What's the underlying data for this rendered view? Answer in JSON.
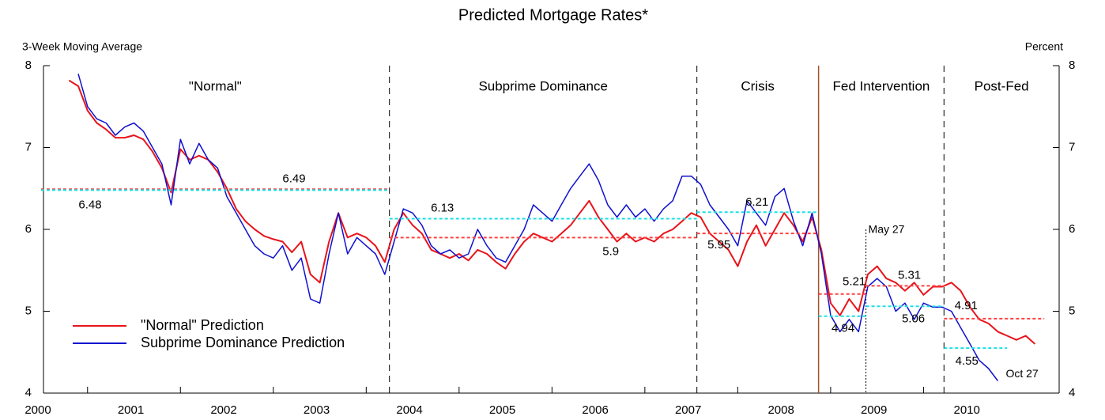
{
  "chart_data": {
    "type": "line",
    "title": "Predicted Mortgage Rates*",
    "ylabel": "3-Week Moving Average",
    "y2label": "Percent",
    "xlim": [
      2000,
      2010.96
    ],
    "ylim": [
      4,
      8
    ],
    "xticks": [
      2000,
      2001,
      2002,
      2003,
      2004,
      2005,
      2006,
      2007,
      2008,
      2009,
      2010
    ],
    "yticks": [
      4,
      5,
      6,
      7,
      8
    ],
    "y2ticks": [
      4,
      5,
      6,
      7,
      8
    ],
    "legend": "lower left",
    "x": [
      2000.3,
      2000.4,
      2000.5,
      2000.6,
      2000.7,
      2000.8,
      2000.9,
      2001.0,
      2001.1,
      2001.2,
      2001.3,
      2001.4,
      2001.5,
      2001.6,
      2001.7,
      2001.8,
      2001.9,
      2002.0,
      2002.1,
      2002.2,
      2002.3,
      2002.4,
      2002.5,
      2002.6,
      2002.7,
      2002.8,
      2002.9,
      2003.0,
      2003.1,
      2003.2,
      2003.3,
      2003.4,
      2003.5,
      2003.6,
      2003.7,
      2003.8,
      2003.9,
      2004.0,
      2004.1,
      2004.2,
      2004.3,
      2004.4,
      2004.5,
      2004.6,
      2004.7,
      2004.8,
      2004.9,
      2005.0,
      2005.1,
      2005.2,
      2005.3,
      2005.4,
      2005.5,
      2005.6,
      2005.7,
      2005.8,
      2005.9,
      2006.0,
      2006.1,
      2006.2,
      2006.3,
      2006.4,
      2006.5,
      2006.6,
      2006.7,
      2006.8,
      2006.9,
      2007.0,
      2007.1,
      2007.2,
      2007.3,
      2007.4,
      2007.5,
      2007.6,
      2007.7,
      2007.8,
      2007.9,
      2008.0,
      2008.1,
      2008.2,
      2008.3,
      2008.4,
      2008.5,
      2008.6,
      2008.7,
      2008.8,
      2008.9,
      2009.0,
      2009.1,
      2009.2,
      2009.3,
      2009.4,
      2009.5,
      2009.6,
      2009.7,
      2009.8,
      2009.9,
      2010.0,
      2010.1,
      2010.2,
      2010.3,
      2010.4,
      2010.5,
      2010.6,
      2010.7,
      2010.8
    ],
    "series": [
      {
        "name": "\"Normal\" Prediction",
        "color": "#e8141b",
        "values": [
          7.82,
          7.75,
          7.45,
          7.3,
          7.22,
          7.12,
          7.12,
          7.15,
          7.1,
          6.95,
          6.75,
          6.45,
          6.98,
          6.85,
          6.9,
          6.85,
          6.7,
          6.5,
          6.25,
          6.1,
          6.0,
          5.92,
          5.88,
          5.85,
          5.72,
          5.85,
          5.45,
          5.35,
          5.85,
          6.2,
          5.9,
          5.95,
          5.9,
          5.8,
          5.6,
          6.0,
          6.2,
          6.05,
          5.95,
          5.75,
          5.7,
          5.65,
          5.7,
          5.62,
          5.75,
          5.7,
          5.6,
          5.52,
          5.7,
          5.85,
          5.95,
          5.9,
          5.85,
          5.95,
          6.05,
          6.2,
          6.35,
          6.15,
          6.0,
          5.85,
          5.95,
          5.85,
          5.9,
          5.85,
          5.95,
          6.0,
          6.1,
          6.2,
          6.15,
          5.95,
          5.85,
          5.75,
          5.55,
          5.85,
          6.05,
          5.8,
          6.0,
          6.2,
          6.05,
          5.85,
          6.15,
          5.75,
          5.1,
          4.95,
          5.15,
          5.0,
          5.45,
          5.55,
          5.4,
          5.35,
          5.25,
          5.35,
          5.2,
          5.3,
          5.3,
          5.35,
          5.25,
          5.05,
          4.9,
          4.85,
          4.75,
          4.7,
          4.65,
          4.7,
          4.6,
          null
        ]
      },
      {
        "name": "Subprime Dominance Prediction",
        "color": "#1010d0",
        "values": [
          null,
          7.9,
          7.5,
          7.35,
          7.3,
          7.15,
          7.25,
          7.3,
          7.2,
          7.0,
          6.8,
          6.3,
          7.1,
          6.8,
          7.05,
          6.85,
          6.75,
          6.4,
          6.2,
          6.0,
          5.8,
          5.7,
          5.65,
          5.8,
          5.5,
          5.65,
          5.15,
          5.1,
          5.7,
          6.2,
          5.7,
          5.9,
          5.8,
          5.7,
          5.45,
          5.85,
          6.25,
          6.2,
          6.05,
          5.8,
          5.7,
          5.75,
          5.65,
          5.7,
          6.0,
          5.8,
          5.65,
          5.6,
          5.8,
          6.0,
          6.3,
          6.2,
          6.1,
          6.3,
          6.5,
          6.65,
          6.8,
          6.6,
          6.3,
          6.15,
          6.3,
          6.15,
          6.25,
          6.1,
          6.25,
          6.35,
          6.65,
          6.65,
          6.55,
          6.3,
          6.15,
          6.0,
          5.8,
          6.35,
          6.2,
          6.05,
          6.4,
          6.5,
          6.1,
          5.8,
          6.2,
          5.7,
          4.95,
          4.75,
          4.9,
          4.75,
          5.3,
          5.4,
          5.3,
          5.0,
          5.1,
          4.9,
          5.1,
          5.05,
          5.05,
          5.0,
          4.8,
          4.6,
          4.4,
          4.3,
          4.15,
          null,
          null,
          null,
          null,
          null
        ]
      }
    ],
    "periods": [
      {
        "label": "\"Normal\"",
        "start": 2000,
        "end": 2003.75
      },
      {
        "label": "Subprime Dominance",
        "start": 2003.75,
        "end": 2007.06,
        "line": "dashed",
        "line_color": "#000000"
      },
      {
        "label": "Crisis",
        "start": 2007.06,
        "end": 2008.37,
        "line": "dashed",
        "line_color": "#000000"
      },
      {
        "label": "Fed Intervention",
        "start": 2008.37,
        "end": 2009.72,
        "line": "solid",
        "line_color": "#a0522d"
      },
      {
        "label": "Post-Fed",
        "start": 2009.72,
        "end": 2010.96,
        "line": "dashed",
        "line_color": "#000000"
      }
    ],
    "reference_lines": [
      {
        "value": 6.49,
        "color": "#ff4040",
        "x": [
          2000,
          2003.75
        ]
      },
      {
        "value": 6.48,
        "color": "#19e0e6",
        "x": [
          2000,
          2003.75
        ]
      },
      {
        "value": 6.13,
        "color": "#19e0e6",
        "x": [
          2003.75,
          2007.06
        ]
      },
      {
        "value": 5.9,
        "color": "#ff4040",
        "x": [
          2003.75,
          2007.06
        ]
      },
      {
        "value": 6.21,
        "color": "#19e0e6",
        "x": [
          2007.06,
          2008.37
        ]
      },
      {
        "value": 5.95,
        "color": "#ff4040",
        "x": [
          2007.06,
          2008.37
        ]
      },
      {
        "value": 5.21,
        "color": "#ff4040",
        "x": [
          2008.37,
          2008.88
        ]
      },
      {
        "value": 5.31,
        "color": "#ff4040",
        "x": [
          2008.88,
          2009.72
        ]
      },
      {
        "value": 4.94,
        "color": "#19e0e6",
        "x": [
          2008.37,
          2008.88
        ]
      },
      {
        "value": 5.06,
        "color": "#19e0e6",
        "x": [
          2008.88,
          2009.72
        ]
      },
      {
        "value": 4.91,
        "color": "#ff4040",
        "x": [
          2009.72,
          2010.8
        ]
      },
      {
        "value": 4.55,
        "color": "#19e0e6",
        "x": [
          2009.72,
          2010.4
        ]
      }
    ],
    "marker_line": {
      "label": "May 27",
      "x": 2008.88
    },
    "end_label": "Oct 27"
  }
}
